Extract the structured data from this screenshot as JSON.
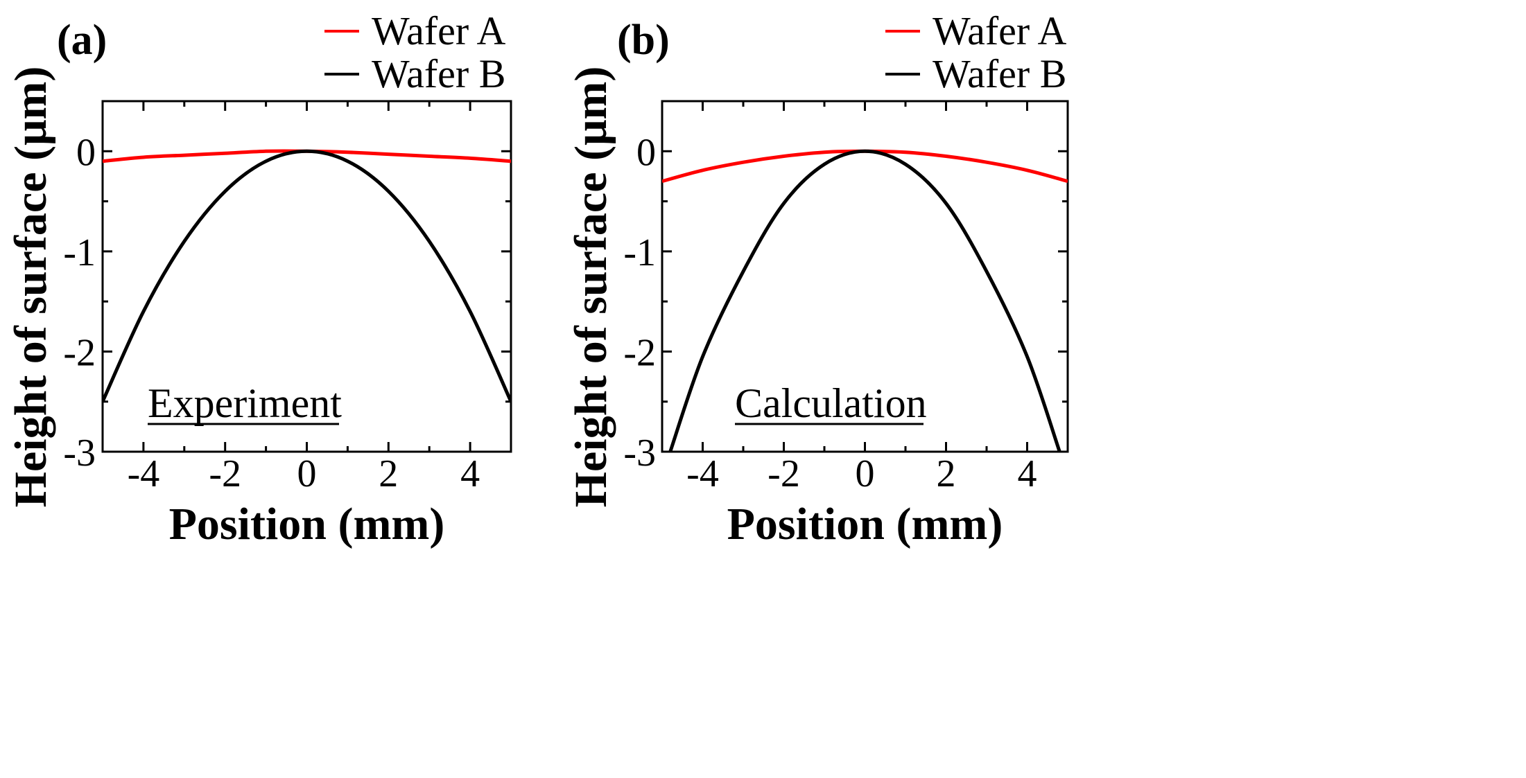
{
  "chart_data": [
    {
      "type": "line",
      "panel_label": "(a)",
      "annotation": "Experiment",
      "xlabel": "Position (mm)",
      "ylabel": "Height of surface (μm)",
      "xlim": [
        -5,
        5
      ],
      "ylim": [
        -3,
        0.5
      ],
      "xticks": [
        -4,
        -2,
        0,
        2,
        4
      ],
      "xtick_labels": [
        "-4",
        "-2",
        "0",
        "2",
        "4"
      ],
      "yticks": [
        -3,
        -2,
        -1,
        0
      ],
      "ytick_labels": [
        "-3",
        "-2",
        "-1",
        "0"
      ],
      "legend_position": "top-right",
      "series": [
        {
          "name": "Wafer A",
          "color": "#ff0000",
          "x": [
            -5,
            -4,
            -3,
            -2,
            -1,
            0,
            1,
            2,
            3,
            4,
            5
          ],
          "y": [
            -0.1,
            -0.06,
            -0.04,
            -0.02,
            0.0,
            0.0,
            -0.01,
            -0.03,
            -0.05,
            -0.07,
            -0.1
          ]
        },
        {
          "name": "Wafer B",
          "color": "#000000",
          "x": [
            -5,
            -4,
            -3,
            -2,
            -1,
            0,
            1,
            2,
            3,
            4,
            5
          ],
          "y": [
            -2.5,
            -1.6,
            -0.9,
            -0.4,
            -0.1,
            0.0,
            -0.1,
            -0.4,
            -0.9,
            -1.6,
            -2.5
          ]
        }
      ]
    },
    {
      "type": "line",
      "panel_label": "(b)",
      "annotation": "Calculation",
      "xlabel": "Position (mm)",
      "ylabel": "Height of surface (μm)",
      "xlim": [
        -5,
        5
      ],
      "ylim": [
        -3,
        0.5
      ],
      "xticks": [
        -4,
        -2,
        0,
        2,
        4
      ],
      "xtick_labels": [
        "-4",
        "-2",
        "0",
        "2",
        "4"
      ],
      "yticks": [
        -3,
        -2,
        -1,
        0
      ],
      "ytick_labels": [
        "-3",
        "-2",
        "-1",
        "0"
      ],
      "legend_position": "top-right",
      "series": [
        {
          "name": "Wafer A",
          "color": "#ff0000",
          "x": [
            -5,
            -4,
            -3,
            -2,
            -1,
            0,
            1,
            2,
            3,
            4,
            5
          ],
          "y": [
            -0.3,
            -0.19,
            -0.11,
            -0.05,
            -0.01,
            0.0,
            -0.01,
            -0.05,
            -0.11,
            -0.19,
            -0.3
          ]
        },
        {
          "name": "Wafer B",
          "color": "#000000",
          "x": [
            -4.8,
            -4,
            -3,
            -2,
            -1,
            0,
            1,
            2,
            3,
            4,
            4.8
          ],
          "y": [
            -3.0,
            -2.05,
            -1.2,
            -0.52,
            -0.13,
            0.0,
            -0.13,
            -0.52,
            -1.2,
            -2.05,
            -3.0
          ]
        }
      ]
    }
  ]
}
